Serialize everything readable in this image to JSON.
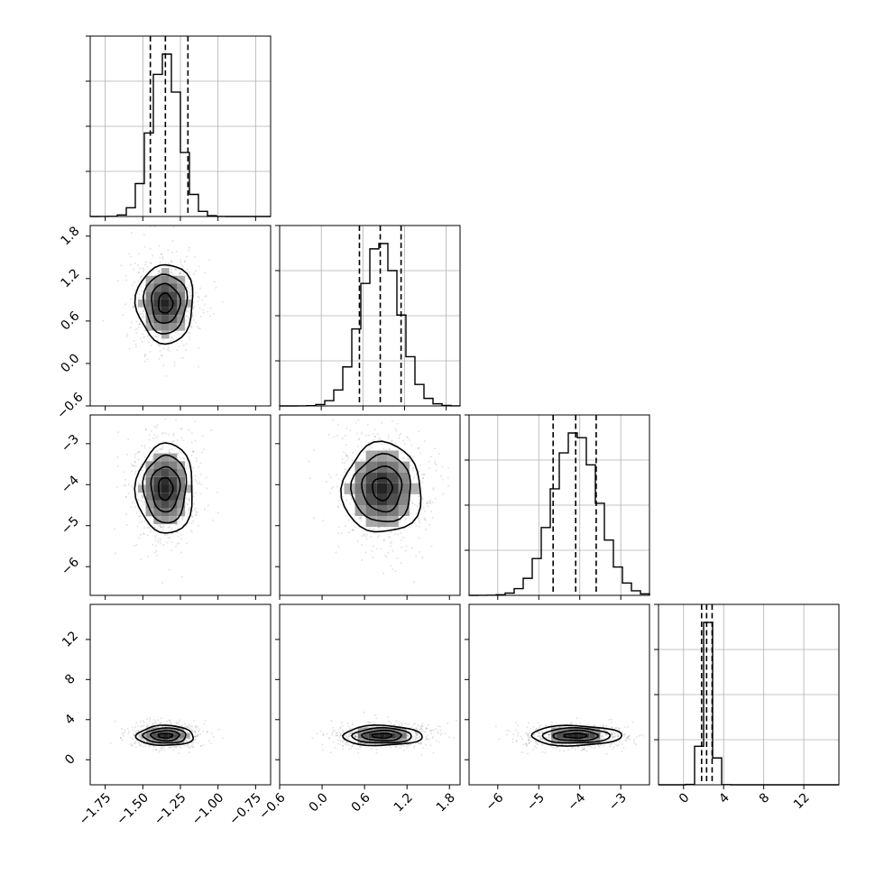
{
  "chart_data": {
    "type": "corner",
    "parameters": [
      {
        "mean": -1.35,
        "sd": 0.095,
        "hist_range": [
          -1.85,
          -0.65
        ],
        "quantiles": [
          -1.45,
          -1.35,
          -1.2
        ],
        "ticks": [
          -1.75,
          -1.5,
          -1.25,
          -1.0,
          -0.75
        ],
        "tick_labels": [
          "−1.75",
          "−1.50",
          "−1.25",
          "−1.00",
          "−0.75"
        ]
      },
      {
        "mean": 0.85,
        "sd": 0.28,
        "hist_range": [
          -0.6,
          2.0
        ],
        "quantiles": [
          0.55,
          0.85,
          1.15
        ],
        "ticks": [
          -0.6,
          0.0,
          0.6,
          1.2,
          1.8
        ],
        "tick_labels": [
          "−0.6",
          "0.0",
          "0.6",
          "1.2",
          "1.8"
        ]
      },
      {
        "mean": -4.1,
        "sd": 0.55,
        "hist_range": [
          -6.7,
          -2.3
        ],
        "quantiles": [
          -4.65,
          -4.1,
          -3.6
        ],
        "ticks": [
          -6,
          -5,
          -4,
          -3
        ],
        "tick_labels": [
          "−6",
          "−5",
          "−4",
          "−3"
        ]
      },
      {
        "mean": 2.4,
        "sd": 0.5,
        "hist_range": [
          -2.5,
          15.5
        ],
        "quantiles": [
          1.8,
          2.3,
          2.85
        ],
        "ticks": [
          0,
          4,
          8,
          12
        ],
        "tick_labels": [
          "0",
          "4",
          "8",
          "12"
        ]
      }
    ],
    "scatter_ranges": [
      [
        -1.85,
        -0.65
      ],
      [
        -0.6,
        1.95
      ],
      [
        -6.7,
        -2.3
      ],
      [
        -2.5,
        15.5
      ]
    ],
    "y_ticks": {
      "1": {
        "ticks": [
          -0.6,
          0.0,
          0.6,
          1.2,
          1.8
        ],
        "labels": [
          "−0.6",
          "0.0",
          "0.6",
          "1.2",
          "1.8"
        ]
      },
      "2": {
        "ticks": [
          -6,
          -5,
          -4,
          -3
        ],
        "labels": [
          "−6",
          "−5",
          "−4",
          "−3"
        ]
      },
      "3": {
        "ticks": [
          0,
          4,
          8,
          12
        ],
        "labels": [
          "0",
          "4",
          "8",
          "12"
        ]
      }
    },
    "grid": true,
    "colors": {
      "contour": "#000000",
      "points": "#808080",
      "grid": "#b0b0b0"
    }
  }
}
